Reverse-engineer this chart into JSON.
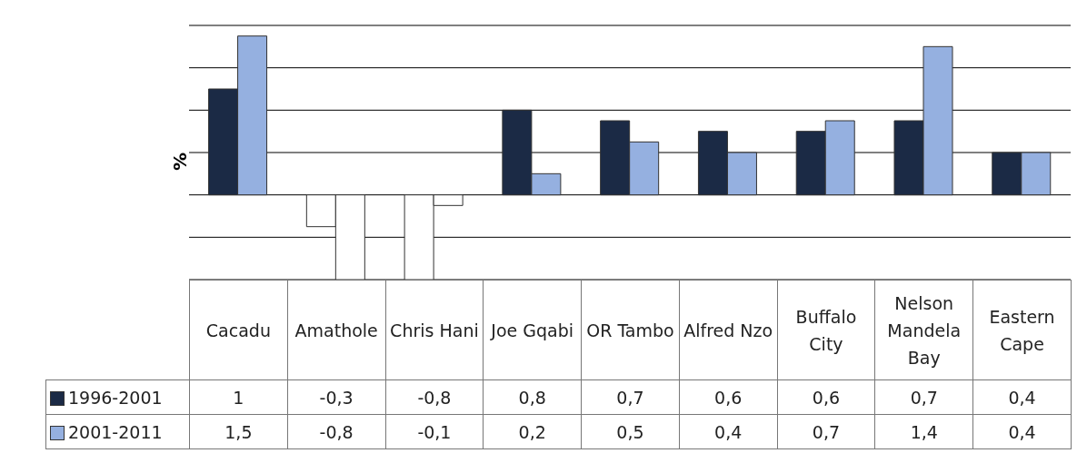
{
  "chart_data": {
    "type": "bar",
    "ylabel": "%",
    "categories": [
      "Cacadu",
      "Amathole",
      "Chris Hani",
      "Joe Gqabi",
      "OR Tambo",
      "Alfred Nzo",
      "Buffalo City",
      "Nelson Mandela Bay",
      "Eastern Cape"
    ],
    "series": [
      {
        "name": "1996-2001",
        "color": "#1b2a45",
        "colors": [
          "#1b2a45",
          "#ffffff",
          "#ffffff",
          "#1b2a45",
          "#1b2a45",
          "#1b2a45",
          "#1b2a45",
          "#1b2a45",
          "#1b2a45"
        ],
        "values": [
          1,
          -0.3,
          -0.8,
          0.8,
          0.7,
          0.6,
          0.6,
          0.7,
          0.4
        ],
        "value_labels": [
          "1",
          "-0,3",
          "-0,8",
          "0,8",
          "0,7",
          "0,6",
          "0,6",
          "0,7",
          "0,4"
        ]
      },
      {
        "name": "2001-2011",
        "color": "#95b0e0",
        "colors": [
          "#95b0e0",
          "#ffffff",
          "#ffffff",
          "#95b0e0",
          "#95b0e0",
          "#95b0e0",
          "#95b0e0",
          "#95b0e0",
          "#95b0e0"
        ],
        "values": [
          1.5,
          -0.8,
          -0.1,
          0.2,
          0.5,
          0.4,
          0.7,
          1.4,
          0.4
        ],
        "value_labels": [
          "1,5",
          "-0,8",
          "-0,1",
          "0,2",
          "0,5",
          "0,4",
          "0,7",
          "1,4",
          "0,4"
        ]
      }
    ],
    "grid": "y",
    "legend": "bottom"
  }
}
